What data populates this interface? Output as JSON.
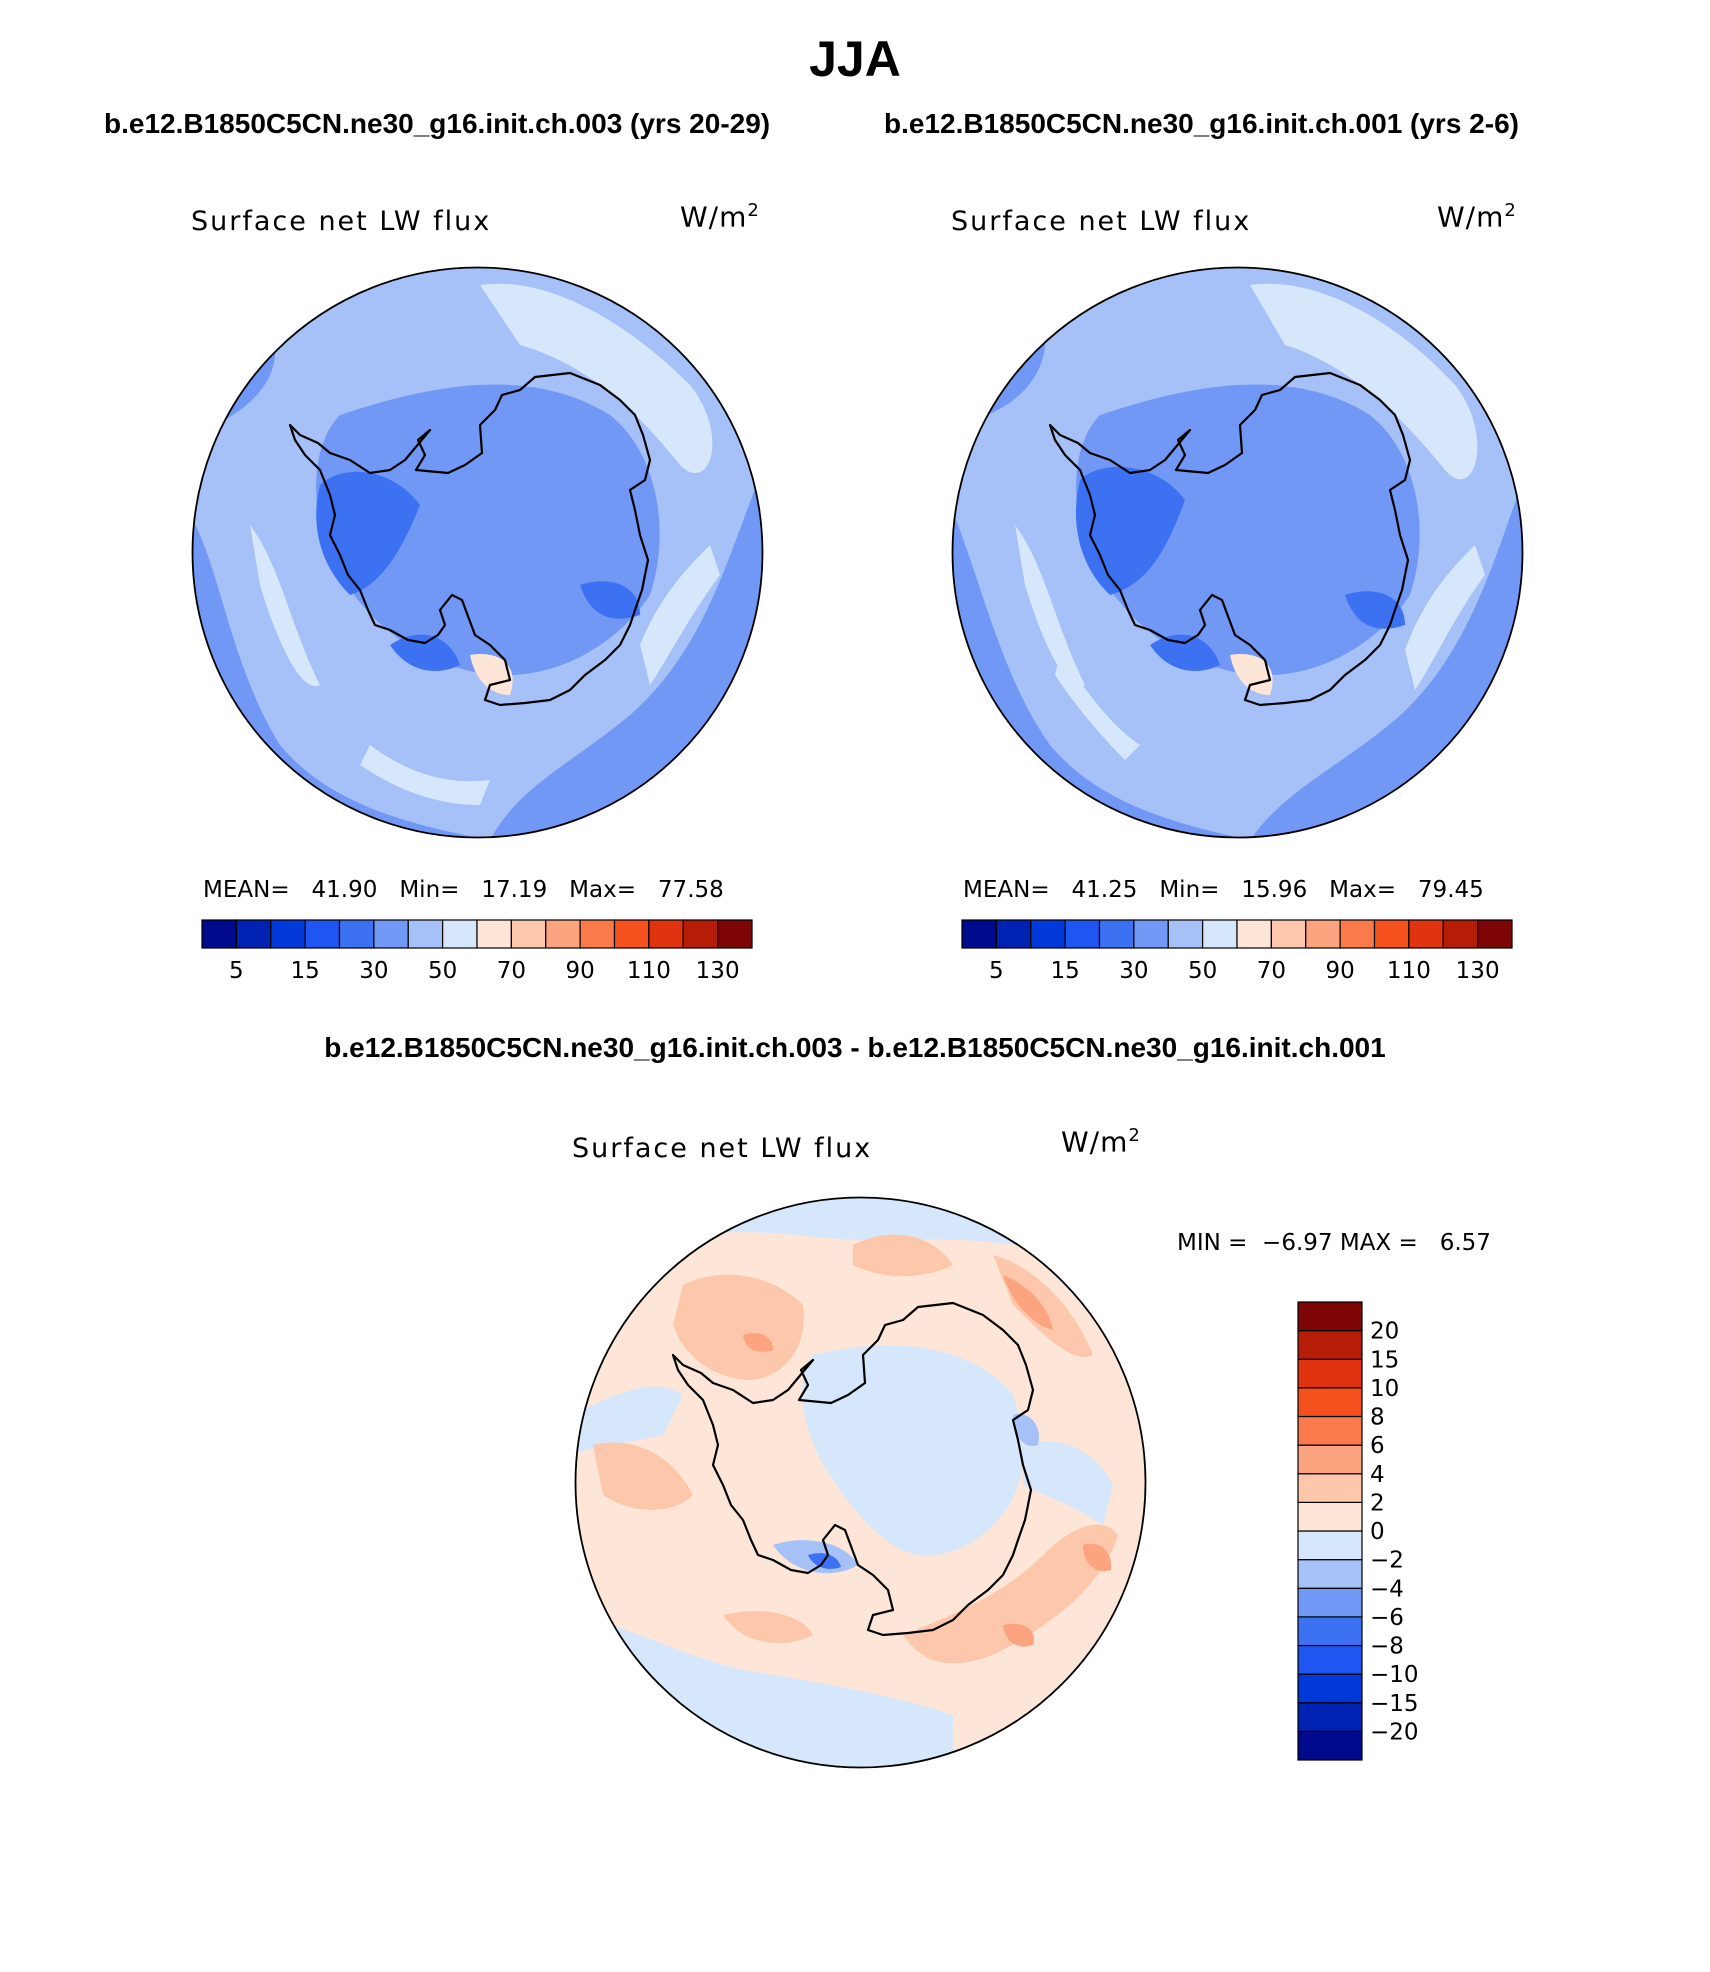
{
  "title": "JJA",
  "case_left": "b.e12.B1850C5CN.ne30_g16.init.ch.003 (yrs 20-29)",
  "case_right": "b.e12.B1850C5CN.ne30_g16.init.ch.001 (yrs 2-6)",
  "diff_title": "b.e12.B1850C5CN.ne30_g16.init.ch.003 - b.e12.B1850C5CN.ne30_g16.init.ch.001",
  "panel1": {
    "variable": "Surface net LW flux",
    "units": "W/m",
    "units_sup": "2",
    "mean_label": "MEAN=",
    "mean": "41.90",
    "min_label": "Min=",
    "min": "17.19",
    "max_label": "Max=",
    "max": "77.58"
  },
  "panel2": {
    "variable": "Surface net LW flux",
    "units": "W/m",
    "units_sup": "2",
    "mean_label": "MEAN=",
    "mean": "41.25",
    "min_label": "Min=",
    "min": "15.96",
    "max_label": "Max=",
    "max": "79.45"
  },
  "panel3": {
    "variable": "Surface net LW flux",
    "units": "W/m",
    "units_sup": "2",
    "min_label": "MIN =",
    "min": "−6.97",
    "max_label": "MAX =",
    "max": "6.57"
  },
  "colorbar_abs": {
    "colors": [
      "#000a8c",
      "#0022b3",
      "#0038d9",
      "#1f55f0",
      "#3c71f2",
      "#7198f4",
      "#a6c0f8",
      "#d6e6fb",
      "#fde6d7",
      "#fcc7ab",
      "#fca37f",
      "#fb7a4c",
      "#f4511f",
      "#e03410",
      "#b51d08",
      "#7d0505"
    ],
    "labels": [
      "5",
      "15",
      "30",
      "50",
      "70",
      "90",
      "110",
      "130"
    ]
  },
  "colorbar_diff": {
    "colors": [
      "#000a8c",
      "#0022b3",
      "#0038d9",
      "#1f55f0",
      "#3c71f2",
      "#7198f4",
      "#a6c0f8",
      "#d6e6fb",
      "#fde6d7",
      "#fcc7ab",
      "#fca37f",
      "#fb7a4c",
      "#f4511f",
      "#e03410",
      "#b51d08",
      "#7d0505"
    ],
    "labels": [
      "−20",
      "−15",
      "−10",
      "−8",
      "−6",
      "−4",
      "−2",
      "0",
      "2",
      "4",
      "6",
      "8",
      "10",
      "15",
      "20"
    ]
  },
  "map_colors": {
    "abs_base": "#a6c0f8",
    "abs_light": "#d6e6fb",
    "abs_mid": "#7198f4",
    "abs_dark": "#3c71f2",
    "abs_warm": "#fde6d7",
    "diff_base": "#fde6d7",
    "diff_warm": "#fcc7ab",
    "diff_warm2": "#fca37f",
    "diff_cool": "#d6e6fb",
    "diff_cool2": "#a6c0f8",
    "diff_cool3": "#3c71f2"
  }
}
